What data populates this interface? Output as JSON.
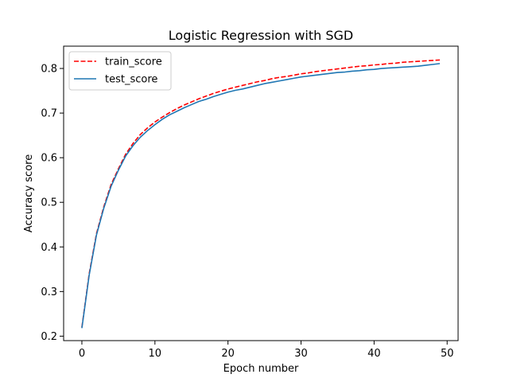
{
  "chart_data": {
    "type": "line",
    "title": "Logistic Regression with SGD",
    "xlabel": "Epoch number",
    "ylabel": "Accuracy score",
    "xlim": [
      -2.5,
      51.5
    ],
    "ylim": [
      0.19,
      0.85
    ],
    "xticks": [
      0,
      10,
      20,
      30,
      40,
      50
    ],
    "yticks": [
      0.2,
      0.3,
      0.4,
      0.5,
      0.6,
      0.7,
      0.8
    ],
    "grid": false,
    "legend_position": "top-left",
    "x": [
      0,
      1,
      2,
      3,
      4,
      5,
      6,
      7,
      8,
      9,
      10,
      11,
      12,
      13,
      14,
      15,
      16,
      17,
      18,
      19,
      20,
      21,
      22,
      23,
      24,
      25,
      26,
      27,
      28,
      29,
      30,
      31,
      32,
      33,
      34,
      35,
      36,
      37,
      38,
      39,
      40,
      41,
      42,
      43,
      44,
      45,
      46,
      47,
      48,
      49
    ],
    "series": [
      {
        "name": "train_score",
        "color": "#ff0000",
        "linestyle": "dashed",
        "values": [
          0.22,
          0.34,
          0.43,
          0.49,
          0.54,
          0.575,
          0.608,
          0.632,
          0.652,
          0.667,
          0.68,
          0.691,
          0.701,
          0.71,
          0.718,
          0.725,
          0.732,
          0.738,
          0.744,
          0.749,
          0.754,
          0.758,
          0.762,
          0.766,
          0.77,
          0.773,
          0.777,
          0.78,
          0.782,
          0.785,
          0.788,
          0.79,
          0.793,
          0.795,
          0.797,
          0.799,
          0.801,
          0.803,
          0.805,
          0.806,
          0.808,
          0.809,
          0.811,
          0.812,
          0.814,
          0.815,
          0.816,
          0.817,
          0.818,
          0.819
        ]
      },
      {
        "name": "test_score",
        "color": "#1f77b4",
        "linestyle": "solid",
        "values": [
          0.218,
          0.337,
          0.427,
          0.487,
          0.536,
          0.572,
          0.604,
          0.627,
          0.646,
          0.661,
          0.674,
          0.686,
          0.696,
          0.704,
          0.712,
          0.719,
          0.726,
          0.731,
          0.737,
          0.742,
          0.747,
          0.751,
          0.754,
          0.758,
          0.762,
          0.766,
          0.769,
          0.772,
          0.775,
          0.778,
          0.781,
          0.783,
          0.785,
          0.787,
          0.789,
          0.791,
          0.792,
          0.794,
          0.795,
          0.797,
          0.798,
          0.8,
          0.801,
          0.802,
          0.803,
          0.804,
          0.805,
          0.807,
          0.809,
          0.811
        ]
      }
    ]
  }
}
